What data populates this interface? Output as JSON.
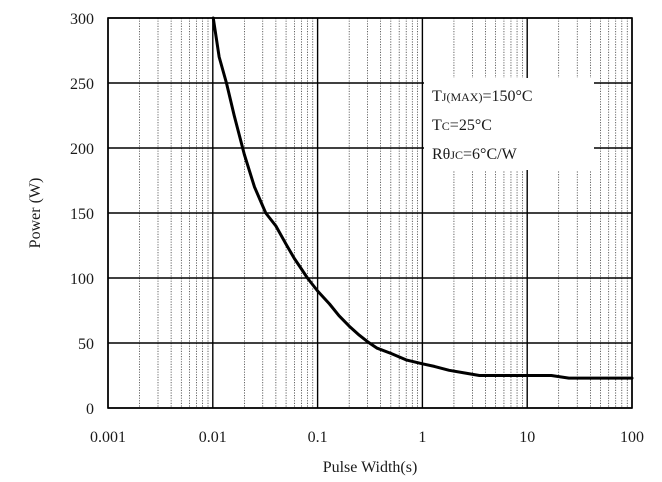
{
  "chart_data": {
    "type": "line",
    "xlabel": "Pulse Width(s)",
    "ylabel": "Power (W)",
    "x_scale": "log",
    "xlim": [
      0.001,
      100
    ],
    "ylim": [
      0,
      300
    ],
    "x_ticks": [
      0.001,
      0.01,
      0.1,
      1,
      10,
      100
    ],
    "x_tick_labels": [
      "0.001",
      "0.01",
      "0.1",
      "1",
      "10",
      "100"
    ],
    "y_ticks": [
      0,
      50,
      100,
      150,
      200,
      250,
      300
    ],
    "y_tick_labels": [
      "0",
      "50",
      "100",
      "150",
      "200",
      "250",
      "300"
    ],
    "grid": true,
    "series": [
      {
        "x": [
          0.0101,
          0.0115,
          0.0135,
          0.016,
          0.02,
          0.025,
          0.032,
          0.04,
          0.05,
          0.06,
          0.07,
          0.08,
          0.1,
          0.13,
          0.16,
          0.2,
          0.25,
          0.3,
          0.37,
          0.5,
          0.7,
          1,
          1.3,
          1.8,
          2.5,
          3.5,
          5,
          7,
          10,
          17,
          25,
          40,
          100
        ],
        "y": [
          300,
          270,
          250,
          225,
          195,
          170,
          150,
          140,
          126,
          115,
          107,
          100,
          90,
          80,
          71,
          63,
          56,
          51,
          46,
          42,
          37,
          34,
          32,
          29,
          27,
          25,
          25,
          25,
          25,
          25,
          23,
          23,
          23
        ]
      }
    ],
    "colors": {
      "curve": "#000000",
      "grid": "#000000",
      "background": "#ffffff"
    }
  },
  "annotation": {
    "lines": [
      {
        "main": "T",
        "sub": "J(MAX)",
        "rest": "=150°C"
      },
      {
        "main": "T",
        "sub": "C",
        "rest": "=25°C"
      },
      {
        "main": "Rθ",
        "sub": "JC",
        "rest": "=6°C/W"
      }
    ]
  }
}
